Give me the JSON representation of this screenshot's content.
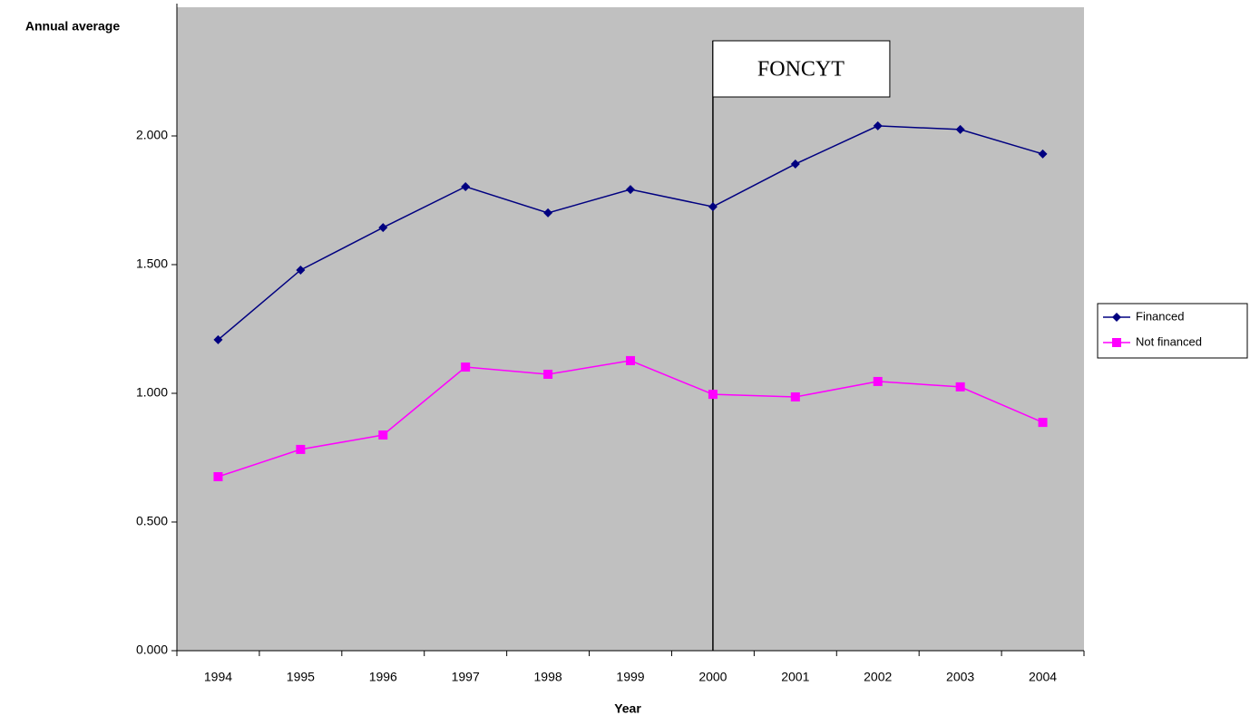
{
  "chart_data": {
    "type": "line",
    "y_label": "Annual average",
    "x_label": "Year",
    "categories": [
      "1994",
      "1995",
      "1996",
      "1997",
      "1998",
      "1999",
      "2000",
      "2001",
      "2002",
      "2003",
      "2004"
    ],
    "series": [
      {
        "name": "Financed",
        "color": "#000080",
        "marker": "diamond",
        "values": [
          1.208,
          1.479,
          1.644,
          1.803,
          1.701,
          1.792,
          1.725,
          1.891,
          2.039,
          2.025,
          1.93
        ]
      },
      {
        "name": "Not financed",
        "color": "#ff00ff",
        "marker": "square",
        "values": [
          0.676,
          0.782,
          0.838,
          1.102,
          1.074,
          1.127,
          0.996,
          0.986,
          1.046,
          1.025,
          0.887
        ]
      }
    ],
    "ylim": [
      0,
      2.5
    ],
    "yticks": [
      {
        "value": 0,
        "label": "0.000"
      },
      {
        "value": 0.5,
        "label": "0.500"
      },
      {
        "value": 1,
        "label": "1.000"
      },
      {
        "value": 1.5,
        "label": "1.500"
      },
      {
        "value": 2,
        "label": "2.000"
      }
    ],
    "annotation": {
      "text": "FONCYT",
      "category": "2000"
    },
    "legend": "right",
    "plot_background": "#c0c0c0"
  }
}
